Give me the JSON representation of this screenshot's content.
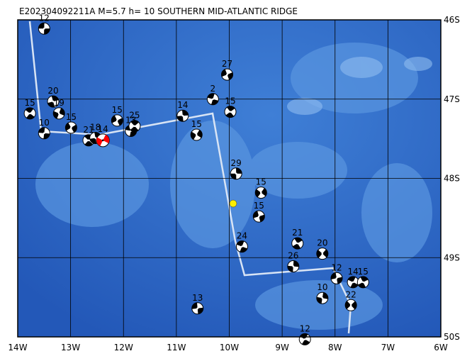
{
  "chart_data": {
    "type": "map",
    "title": "E202304092211A M=5.7 h= 10 SOUTHERN MID-ATLANTIC RIDGE",
    "xlim": [
      -14,
      -6
    ],
    "ylim": [
      -46,
      -50
    ],
    "xticks": [
      {
        "value": -14,
        "label": "14W"
      },
      {
        "value": -13,
        "label": "13W"
      },
      {
        "value": -12,
        "label": "12W"
      },
      {
        "value": -11,
        "label": "11W"
      },
      {
        "value": -10,
        "label": "10W"
      },
      {
        "value": -9,
        "label": "9W"
      },
      {
        "value": -8,
        "label": "8W"
      },
      {
        "value": -7,
        "label": "7W"
      },
      {
        "value": -6,
        "label": "6W"
      }
    ],
    "yticks": [
      {
        "value": -46,
        "label": "46S"
      },
      {
        "value": -47,
        "label": "47S"
      },
      {
        "value": -48,
        "label": "48S"
      },
      {
        "value": -49,
        "label": "49S"
      },
      {
        "value": -50,
        "label": "50S"
      }
    ],
    "grid": true,
    "events": [
      {
        "label": 12,
        "lon": -13.5,
        "lat": -46.11,
        "color": "#000000"
      },
      {
        "label": 15,
        "lon": -13.77,
        "lat": -47.18,
        "color": "#000000"
      },
      {
        "label": 20,
        "lon": -13.33,
        "lat": -47.03,
        "color": "#000000"
      },
      {
        "label": 19,
        "lon": -13.22,
        "lat": -47.18,
        "color": "#000000"
      },
      {
        "label": 15,
        "lon": -12.99,
        "lat": -47.36,
        "color": "#000000"
      },
      {
        "label": 10,
        "lon": -13.5,
        "lat": -47.43,
        "color": "#000000"
      },
      {
        "label": 21,
        "lon": -12.66,
        "lat": -47.52,
        "color": "#000000"
      },
      {
        "label": 18,
        "lon": -12.53,
        "lat": -47.49,
        "color": "#000000"
      },
      {
        "label": 14,
        "lon": -12.39,
        "lat": -47.52,
        "color": "#ff0000"
      },
      {
        "label": 15,
        "lon": -12.12,
        "lat": -47.27,
        "color": "#000000"
      },
      {
        "label": 13,
        "lon": -11.86,
        "lat": -47.4,
        "color": "#000000"
      },
      {
        "label": 25,
        "lon": -11.79,
        "lat": -47.34,
        "color": "#000000"
      },
      {
        "label": 14,
        "lon": -10.88,
        "lat": -47.21,
        "color": "#000000"
      },
      {
        "label": 15,
        "lon": -10.62,
        "lat": -47.45,
        "color": "#000000"
      },
      {
        "label": 27,
        "lon": -10.04,
        "lat": -46.69,
        "color": "#000000"
      },
      {
        "label": 2,
        "lon": -10.31,
        "lat": -47.0,
        "color": "#000000"
      },
      {
        "label": 15,
        "lon": -9.98,
        "lat": -47.16,
        "color": "#000000"
      },
      {
        "label": 29,
        "lon": -9.87,
        "lat": -47.94,
        "color": "#000000"
      },
      {
        "label": 15,
        "lon": -9.4,
        "lat": -48.18,
        "color": "#000000"
      },
      {
        "label": 15,
        "lon": -9.44,
        "lat": -48.48,
        "color": "#000000"
      },
      {
        "label": 24,
        "lon": -9.76,
        "lat": -48.86,
        "color": "#000000"
      },
      {
        "label": 21,
        "lon": -8.71,
        "lat": -48.82,
        "color": "#000000"
      },
      {
        "label": 26,
        "lon": -8.79,
        "lat": -49.11,
        "color": "#000000"
      },
      {
        "label": 20,
        "lon": -8.24,
        "lat": -48.95,
        "color": "#000000"
      },
      {
        "label": 12,
        "lon": -7.97,
        "lat": -49.26,
        "color": "#000000"
      },
      {
        "label": 14,
        "lon": -7.66,
        "lat": -49.31,
        "color": "#000000"
      },
      {
        "label": 15,
        "lon": -7.47,
        "lat": -49.31,
        "color": "#000000"
      },
      {
        "label": 10,
        "lon": -8.24,
        "lat": -49.51,
        "color": "#000000"
      },
      {
        "label": 22,
        "lon": -7.7,
        "lat": -49.6,
        "color": "#000000"
      },
      {
        "label": 13,
        "lon": -10.6,
        "lat": -49.64,
        "color": "#000000"
      },
      {
        "label": 12,
        "lon": -8.57,
        "lat": -50.03,
        "color": "#000000"
      }
    ]
  }
}
